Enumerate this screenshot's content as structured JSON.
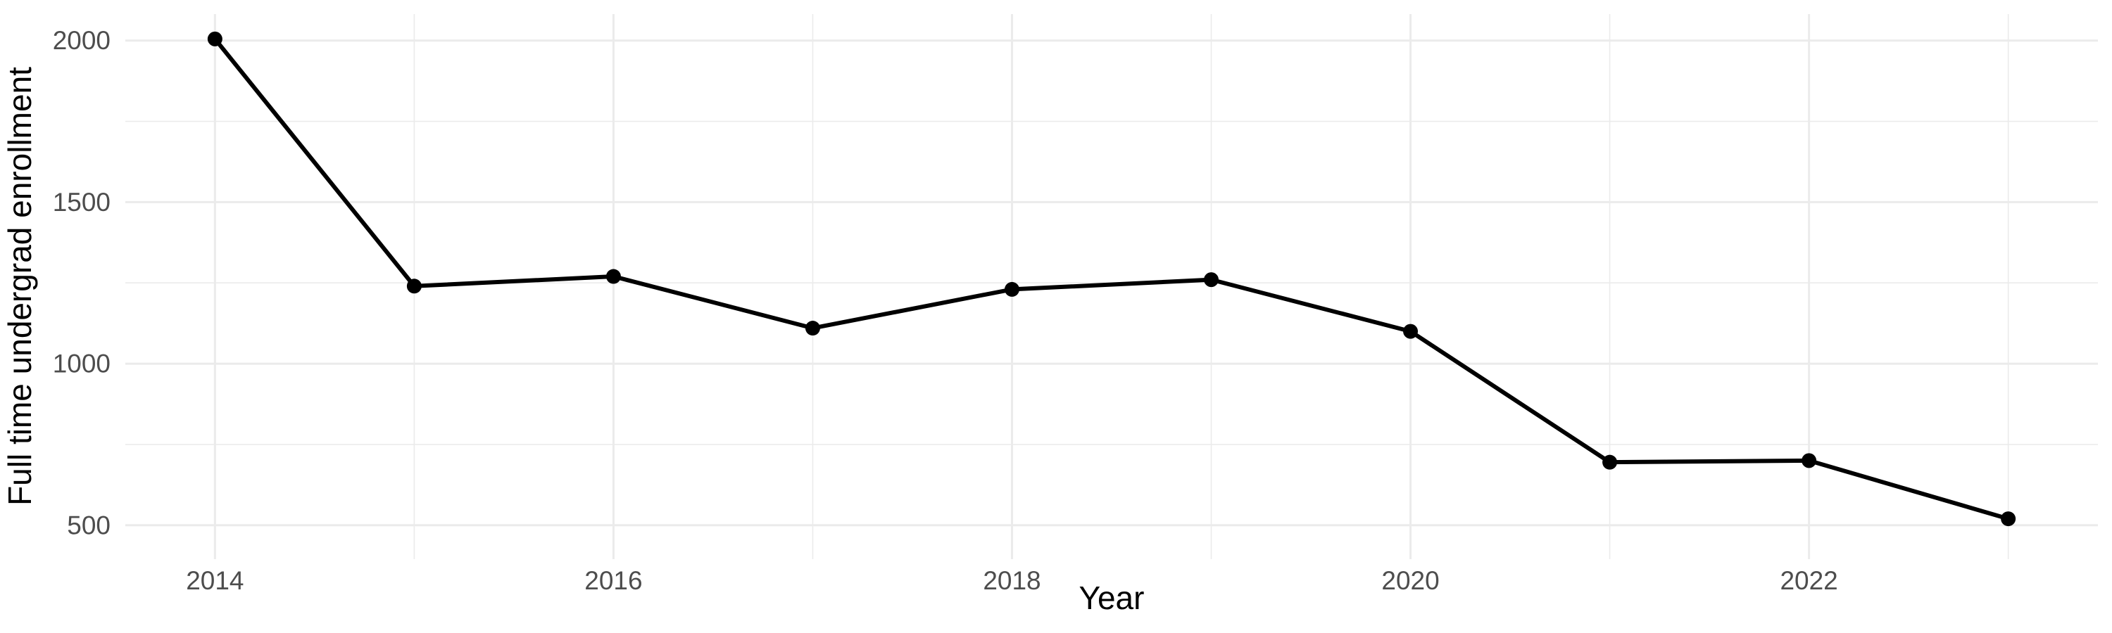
{
  "figure": {
    "background": "#ffffff"
  },
  "chart_data": {
    "type": "line",
    "title": "",
    "xlabel": "Year",
    "ylabel": "Full time undergrad enrollment",
    "x": [
      2014,
      2015,
      2016,
      2017,
      2018,
      2019,
      2020,
      2021,
      2022,
      2023
    ],
    "series": [
      {
        "name": "Full time undergrad enrollment",
        "values": [
          2005,
          1240,
          1270,
          1110,
          1230,
          1260,
          1100,
          695,
          700,
          520
        ]
      }
    ],
    "x_tick_labels": [
      "2014",
      "2016",
      "2018",
      "2020",
      "2022"
    ],
    "x_ticks": [
      2014,
      2016,
      2018,
      2020,
      2022
    ],
    "x_minor_ticks": [
      2015,
      2017,
      2019,
      2021,
      2023
    ],
    "y_tick_labels": [
      "500",
      "1000",
      "1500",
      "2000"
    ],
    "y_ticks": [
      500,
      1000,
      1500,
      2000
    ],
    "y_minor_ticks": [
      750,
      1250,
      1750
    ],
    "xlim": [
      2013.55,
      2023.45
    ],
    "ylim": [
      395,
      2082
    ],
    "grid": true,
    "legend": false,
    "colors": {
      "line": "#000000",
      "point": "#000000",
      "grid": "#EBEBEB",
      "tick_label": "#4D4D4D",
      "axis_title": "#000000",
      "background": "#ffffff"
    }
  }
}
